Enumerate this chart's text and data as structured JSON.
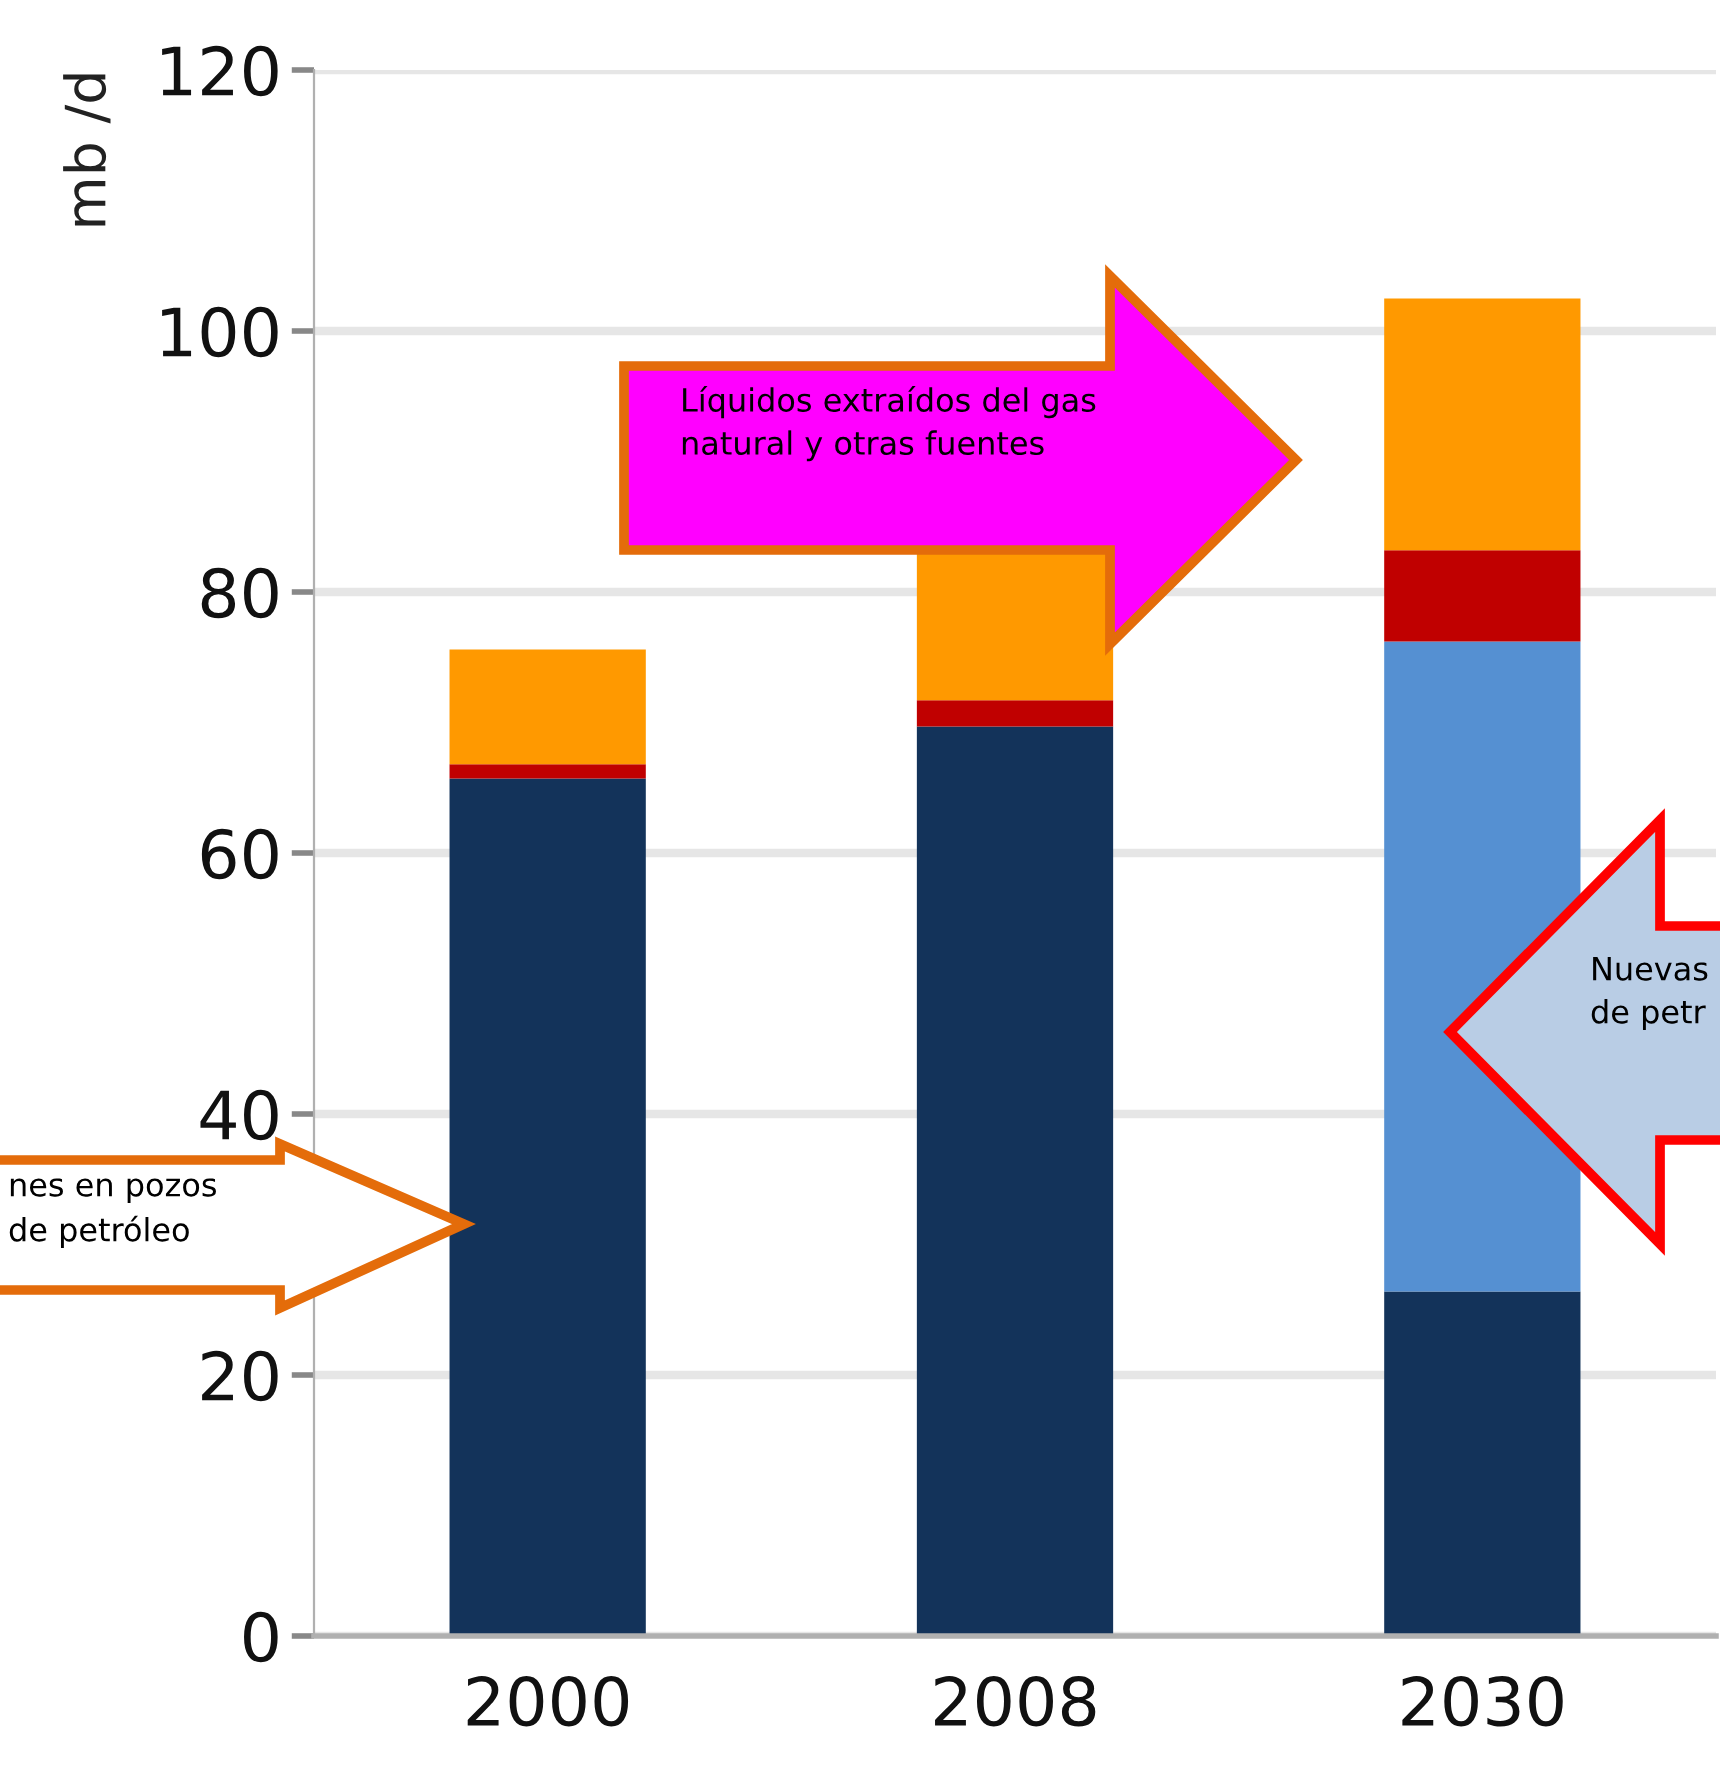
{
  "chart_data": {
    "type": "bar",
    "ylabel": "mb /d",
    "categories": [
      "2000",
      "2008",
      "2030"
    ],
    "stacked": true,
    "series": [
      {
        "color": "#13335a",
        "values": [
          65.7,
          69.7,
          26.4
        ]
      },
      {
        "color": "#5590d2",
        "values": [
          0,
          0,
          49.8
        ]
      },
      {
        "color": "#c00000",
        "values": [
          1.1,
          2.0,
          7.0
        ]
      },
      {
        "color": "#ff9900",
        "values": [
          8.8,
          11.5,
          19.3
        ]
      }
    ],
    "ylim": [
      0,
      120
    ],
    "yticks": [
      0,
      20,
      40,
      60,
      80,
      100,
      120
    ],
    "grid": "y",
    "annotations": [
      "Líquidos extraídos del gas\nnatural y otras fuentes",
      "nes en pozos\nde petróleo",
      "Nuevas\nde petr"
    ]
  }
}
